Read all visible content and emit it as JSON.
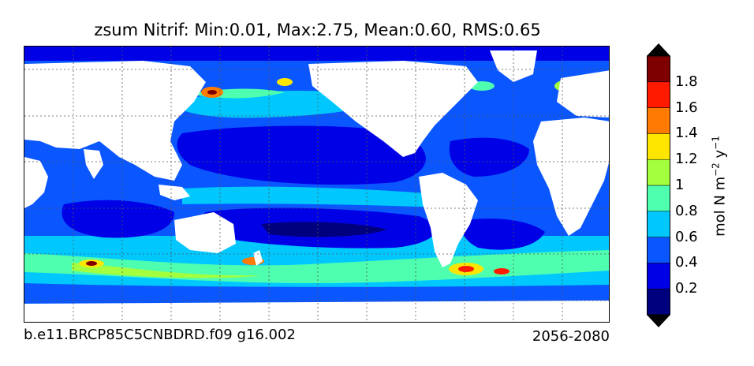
{
  "title": "zsum Nitrif: Min:0.01, Max:2.75, Mean:0.60, RMS:0.65",
  "footer": {
    "case_name": "b.e11.BRCP85C5CNBDRD.f09 g16.002",
    "period": "2056-2080"
  },
  "colorbar": {
    "units_base": "mol N m",
    "units_exp1": "−2",
    "units_mid": " y",
    "units_exp2": "−1",
    "levels": [
      "0.2",
      "0.4",
      "0.6",
      "0.8",
      "1",
      "1.2",
      "1.4",
      "1.6",
      "1.8"
    ],
    "colors": [
      "#00007f",
      "#0000e6",
      "#0a56ff",
      "#00c8ff",
      "#4dffaf",
      "#a4ff3f",
      "#ffe600",
      "#ff7a00",
      "#ff1a00",
      "#7f0000"
    ]
  },
  "map": {
    "land_color": "#ffffff",
    "gridlines": true,
    "ocean_colors": {
      "low": "#0000e6",
      "base": "#0a56ff",
      "mid": "#00c8ff",
      "high": "#4dffaf",
      "higher": "#a4ff3f",
      "peak": "#ffe600",
      "hot": "#ff7a00",
      "hotter": "#ff1a00",
      "max": "#7f0000",
      "deep": "#00007f"
    }
  }
}
